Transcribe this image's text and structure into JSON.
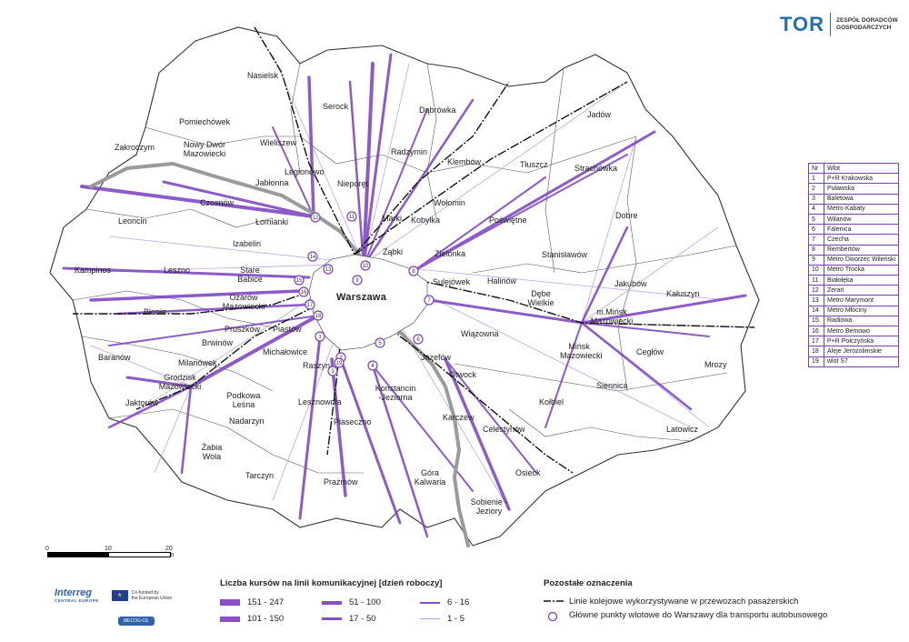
{
  "logo": {
    "brand": "TOR",
    "subtitle_line1": "ZESPÓŁ DORADCÓW",
    "subtitle_line2": "GOSPODARCZYCH"
  },
  "places": [
    {
      "name": "Nasielsk"
    },
    {
      "name": "Serock"
    },
    {
      "name": "Dąbrówka"
    },
    {
      "name": "Jadów"
    },
    {
      "name": "Pomiechówek"
    },
    {
      "name": "Nowy Dwór Mazowiecki"
    },
    {
      "name": "Wieliszew"
    },
    {
      "name": "Zakroczym"
    },
    {
      "name": "Legionowo"
    },
    {
      "name": "Radzymin"
    },
    {
      "name": "Klembów"
    },
    {
      "name": "Tłuszcz"
    },
    {
      "name": "Strachówka"
    },
    {
      "name": "Jabłonna"
    },
    {
      "name": "Nieporęt"
    },
    {
      "name": "Czosnów"
    },
    {
      "name": "Wołomin"
    },
    {
      "name": "Leoncin"
    },
    {
      "name": "Łomianki"
    },
    {
      "name": "Marki"
    },
    {
      "name": "Kobyłka"
    },
    {
      "name": "Poświętne"
    },
    {
      "name": "Dobre"
    },
    {
      "name": "Izabelin"
    },
    {
      "name": "Ząbki"
    },
    {
      "name": "Zielonka"
    },
    {
      "name": "Stanisławów"
    },
    {
      "name": "Kampinos"
    },
    {
      "name": "Leszno"
    },
    {
      "name": "Stare Babice"
    },
    {
      "name": "Sulejówek"
    },
    {
      "name": "Halinów"
    },
    {
      "name": "Jakubów"
    },
    {
      "name": "Kałuszyn"
    },
    {
      "name": "Ożarów Mazowiecki"
    },
    {
      "name": "Warszawa"
    },
    {
      "name": "Dębe Wielkie"
    },
    {
      "name": "Błonie"
    },
    {
      "name": "m.Mińsk Mazowiecki"
    },
    {
      "name": "Pruszków"
    },
    {
      "name": "Piastów"
    },
    {
      "name": "Brwinów"
    },
    {
      "name": "Wiązowna"
    },
    {
      "name": "Baranów"
    },
    {
      "name": "Michałowice"
    },
    {
      "name": "Mińsk Mazowiecki"
    },
    {
      "name": "Cegłów"
    },
    {
      "name": "Milanówek"
    },
    {
      "name": "Józefów"
    },
    {
      "name": "Raszyn"
    },
    {
      "name": "Mrozy"
    },
    {
      "name": "Grodzisk Mazowiecki"
    },
    {
      "name": "Otwock"
    },
    {
      "name": "Konstancin -Jeziorna"
    },
    {
      "name": "Siennica"
    },
    {
      "name": "Podkowa Leśna"
    },
    {
      "name": "Lesznowola"
    },
    {
      "name": "Kołbiel"
    },
    {
      "name": "Jaktorów"
    },
    {
      "name": "Nadarzyn"
    },
    {
      "name": "Karczew"
    },
    {
      "name": "Piaseczno"
    },
    {
      "name": "Latowicz"
    },
    {
      "name": "Celestynów"
    },
    {
      "name": "Żabia Wola"
    },
    {
      "name": "Tarczyn"
    },
    {
      "name": "Osieck"
    },
    {
      "name": "Prażmów"
    },
    {
      "name": "Góra Kalwaria"
    },
    {
      "name": "Sobienie -Jeziory"
    }
  ],
  "entries_table": {
    "header": {
      "n": "Nr",
      "w": "Wlot"
    },
    "rows": [
      {
        "n": "1",
        "w": "P+R Krakowska"
      },
      {
        "n": "2",
        "w": "Puławska"
      },
      {
        "n": "3",
        "w": "Baletowa"
      },
      {
        "n": "4",
        "w": "Metro Kabaty"
      },
      {
        "n": "5",
        "w": "Wilanów"
      },
      {
        "n": "6",
        "w": "Falenica"
      },
      {
        "n": "7",
        "w": "Czecha"
      },
      {
        "n": "8",
        "w": "Rembertów"
      },
      {
        "n": "9",
        "w": "Metro Dworzec Wileński"
      },
      {
        "n": "10",
        "w": "Metro Trocka"
      },
      {
        "n": "11",
        "w": "Białołęka"
      },
      {
        "n": "12",
        "w": "Żerań"
      },
      {
        "n": "13",
        "w": "Metro Marymont"
      },
      {
        "n": "14",
        "w": "Metro Młociny"
      },
      {
        "n": "15",
        "w": "Radiowa"
      },
      {
        "n": "16",
        "w": "Metro Bemowo"
      },
      {
        "n": "17",
        "w": "P+R Połczyńska"
      },
      {
        "n": "18",
        "w": "Aleje Jerozolimskie"
      },
      {
        "n": "19",
        "w": "wlot S7"
      }
    ]
  },
  "scale": {
    "t0": "0",
    "t1": "10",
    "t2": "20 km"
  },
  "legend": {
    "title": "Liczba kursów na linii komunikacyjnej [dzień roboczy]",
    "classes": [
      {
        "label": "151 - 247"
      },
      {
        "label": "101 - 150"
      },
      {
        "label": "51 - 100"
      },
      {
        "label": "17 - 50"
      },
      {
        "label": "6 - 16"
      },
      {
        "label": "1 - 5"
      }
    ],
    "other_title": "Pozostałe oznaczenia",
    "rail_label": "Linie kolejowe wykorzystywane w przewozach pasażerskich",
    "points_label": "Główne punkty wlotowe do Warszawy dla transportu autobusowego"
  },
  "partners": {
    "interreg": "Interreg",
    "interreg_sub": "CENTRAL EUROPE",
    "eu_line1": "Co-funded by",
    "eu_line2": "the European Union",
    "project": "MECOG-CE"
  },
  "colors": {
    "route": "#7a3fc0",
    "route_light": "#b79ce0",
    "river": "#9a9a9a",
    "rail": "#111111"
  }
}
